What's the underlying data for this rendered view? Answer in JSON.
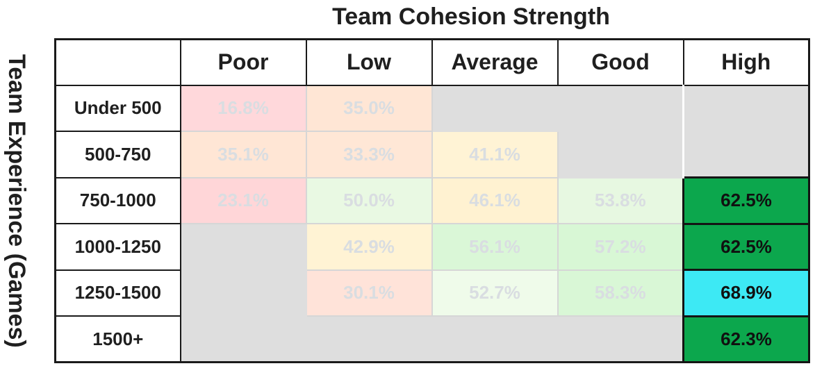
{
  "title": "Team Cohesion Strength",
  "y_axis_label": "Team Experience (Games)",
  "columns": [
    "Poor",
    "Low",
    "Average",
    "Good",
    "High"
  ],
  "rows": [
    "Under 500",
    "500-750",
    "750-1000",
    "1000-1250",
    "1250-1500",
    "1500+"
  ],
  "cells": [
    [
      {
        "value": "16.8%",
        "bg": "#ffd8db",
        "state": "faded"
      },
      {
        "value": "35.0%",
        "bg": "#ffe6d5",
        "state": "faded"
      },
      {
        "value": null,
        "bg": "#dedede",
        "state": "empty"
      },
      {
        "value": null,
        "bg": "#dedede",
        "state": "empty"
      },
      {
        "value": null,
        "bg": "#dedede",
        "state": "empty"
      }
    ],
    [
      {
        "value": "35.1%",
        "bg": "#ffe6d5",
        "state": "faded"
      },
      {
        "value": "33.3%",
        "bg": "#ffe7d6",
        "state": "faded"
      },
      {
        "value": "41.1%",
        "bg": "#fff3d5",
        "state": "faded"
      },
      {
        "value": null,
        "bg": "#dedede",
        "state": "empty"
      },
      {
        "value": null,
        "bg": "#dedede",
        "state": "empty"
      }
    ],
    [
      {
        "value": "23.1%",
        "bg": "#ffd6d8",
        "state": "faded"
      },
      {
        "value": "50.0%",
        "bg": "#e9f9e3",
        "state": "faded"
      },
      {
        "value": "46.1%",
        "bg": "#fff2d1",
        "state": "faded"
      },
      {
        "value": "53.8%",
        "bg": "#e7f8e1",
        "state": "faded"
      },
      {
        "value": "62.5%",
        "bg": "#0ca74d",
        "state": "highlight"
      }
    ],
    [
      {
        "value": null,
        "bg": "#dedede",
        "state": "empty"
      },
      {
        "value": "42.9%",
        "bg": "#fff3d4",
        "state": "faded"
      },
      {
        "value": "56.1%",
        "bg": "#daf7d7",
        "state": "faded"
      },
      {
        "value": "57.2%",
        "bg": "#d8f7d5",
        "state": "faded"
      },
      {
        "value": "62.5%",
        "bg": "#0ca74d",
        "state": "highlight"
      }
    ],
    [
      {
        "value": null,
        "bg": "#dedede",
        "state": "empty"
      },
      {
        "value": "30.1%",
        "bg": "#ffe3d9",
        "state": "faded"
      },
      {
        "value": "52.7%",
        "bg": "#effbea",
        "state": "faded"
      },
      {
        "value": "58.3%",
        "bg": "#d9f7d6",
        "state": "faded"
      },
      {
        "value": "68.9%",
        "bg": "#3de9f4",
        "state": "highlight"
      }
    ],
    [
      {
        "value": null,
        "bg": "#dedede",
        "state": "empty"
      },
      {
        "value": null,
        "bg": "#dedede",
        "state": "empty"
      },
      {
        "value": null,
        "bg": "#dedede",
        "state": "empty"
      },
      {
        "value": null,
        "bg": "#dedede",
        "state": "empty"
      },
      {
        "value": "62.3%",
        "bg": "#0ca74d",
        "state": "highlight"
      }
    ]
  ],
  "colors": {
    "highlight_green": "#0ca74d",
    "highlight_cyan": "#3de9f4",
    "empty_gray": "#dedede",
    "faded_text": "#d9dde1",
    "border_dark": "#1a1a1a",
    "text_dark": "#1f1f1f"
  },
  "chart_data": {
    "type": "heatmap",
    "title": "Team Cohesion Strength",
    "x_label": "Team Cohesion Strength",
    "y_label": "Team Experience (Games)",
    "x_categories": [
      "Poor",
      "Low",
      "Average",
      "Good",
      "High"
    ],
    "y_categories": [
      "Under 500",
      "500-750",
      "750-1000",
      "1000-1250",
      "1250-1500",
      "1500+"
    ],
    "values_pct": [
      [
        16.8,
        35.0,
        null,
        null,
        null
      ],
      [
        35.1,
        33.3,
        41.1,
        null,
        null
      ],
      [
        23.1,
        50.0,
        46.1,
        53.8,
        62.5
      ],
      [
        null,
        42.9,
        56.1,
        57.2,
        62.5
      ],
      [
        null,
        30.1,
        52.7,
        58.3,
        68.9
      ],
      [
        null,
        null,
        null,
        null,
        62.3
      ]
    ],
    "highlighted_cells": [
      {
        "row": "750-1000",
        "column": "High",
        "value_pct": 62.5
      },
      {
        "row": "1000-1250",
        "column": "High",
        "value_pct": 62.5
      },
      {
        "row": "1250-1500",
        "column": "High",
        "value_pct": 68.9
      },
      {
        "row": "1500+",
        "column": "High",
        "value_pct": 62.3
      }
    ],
    "legend": "none",
    "notes": "Cells outside the High column are faded/dimmed; cells with no value are gray."
  }
}
